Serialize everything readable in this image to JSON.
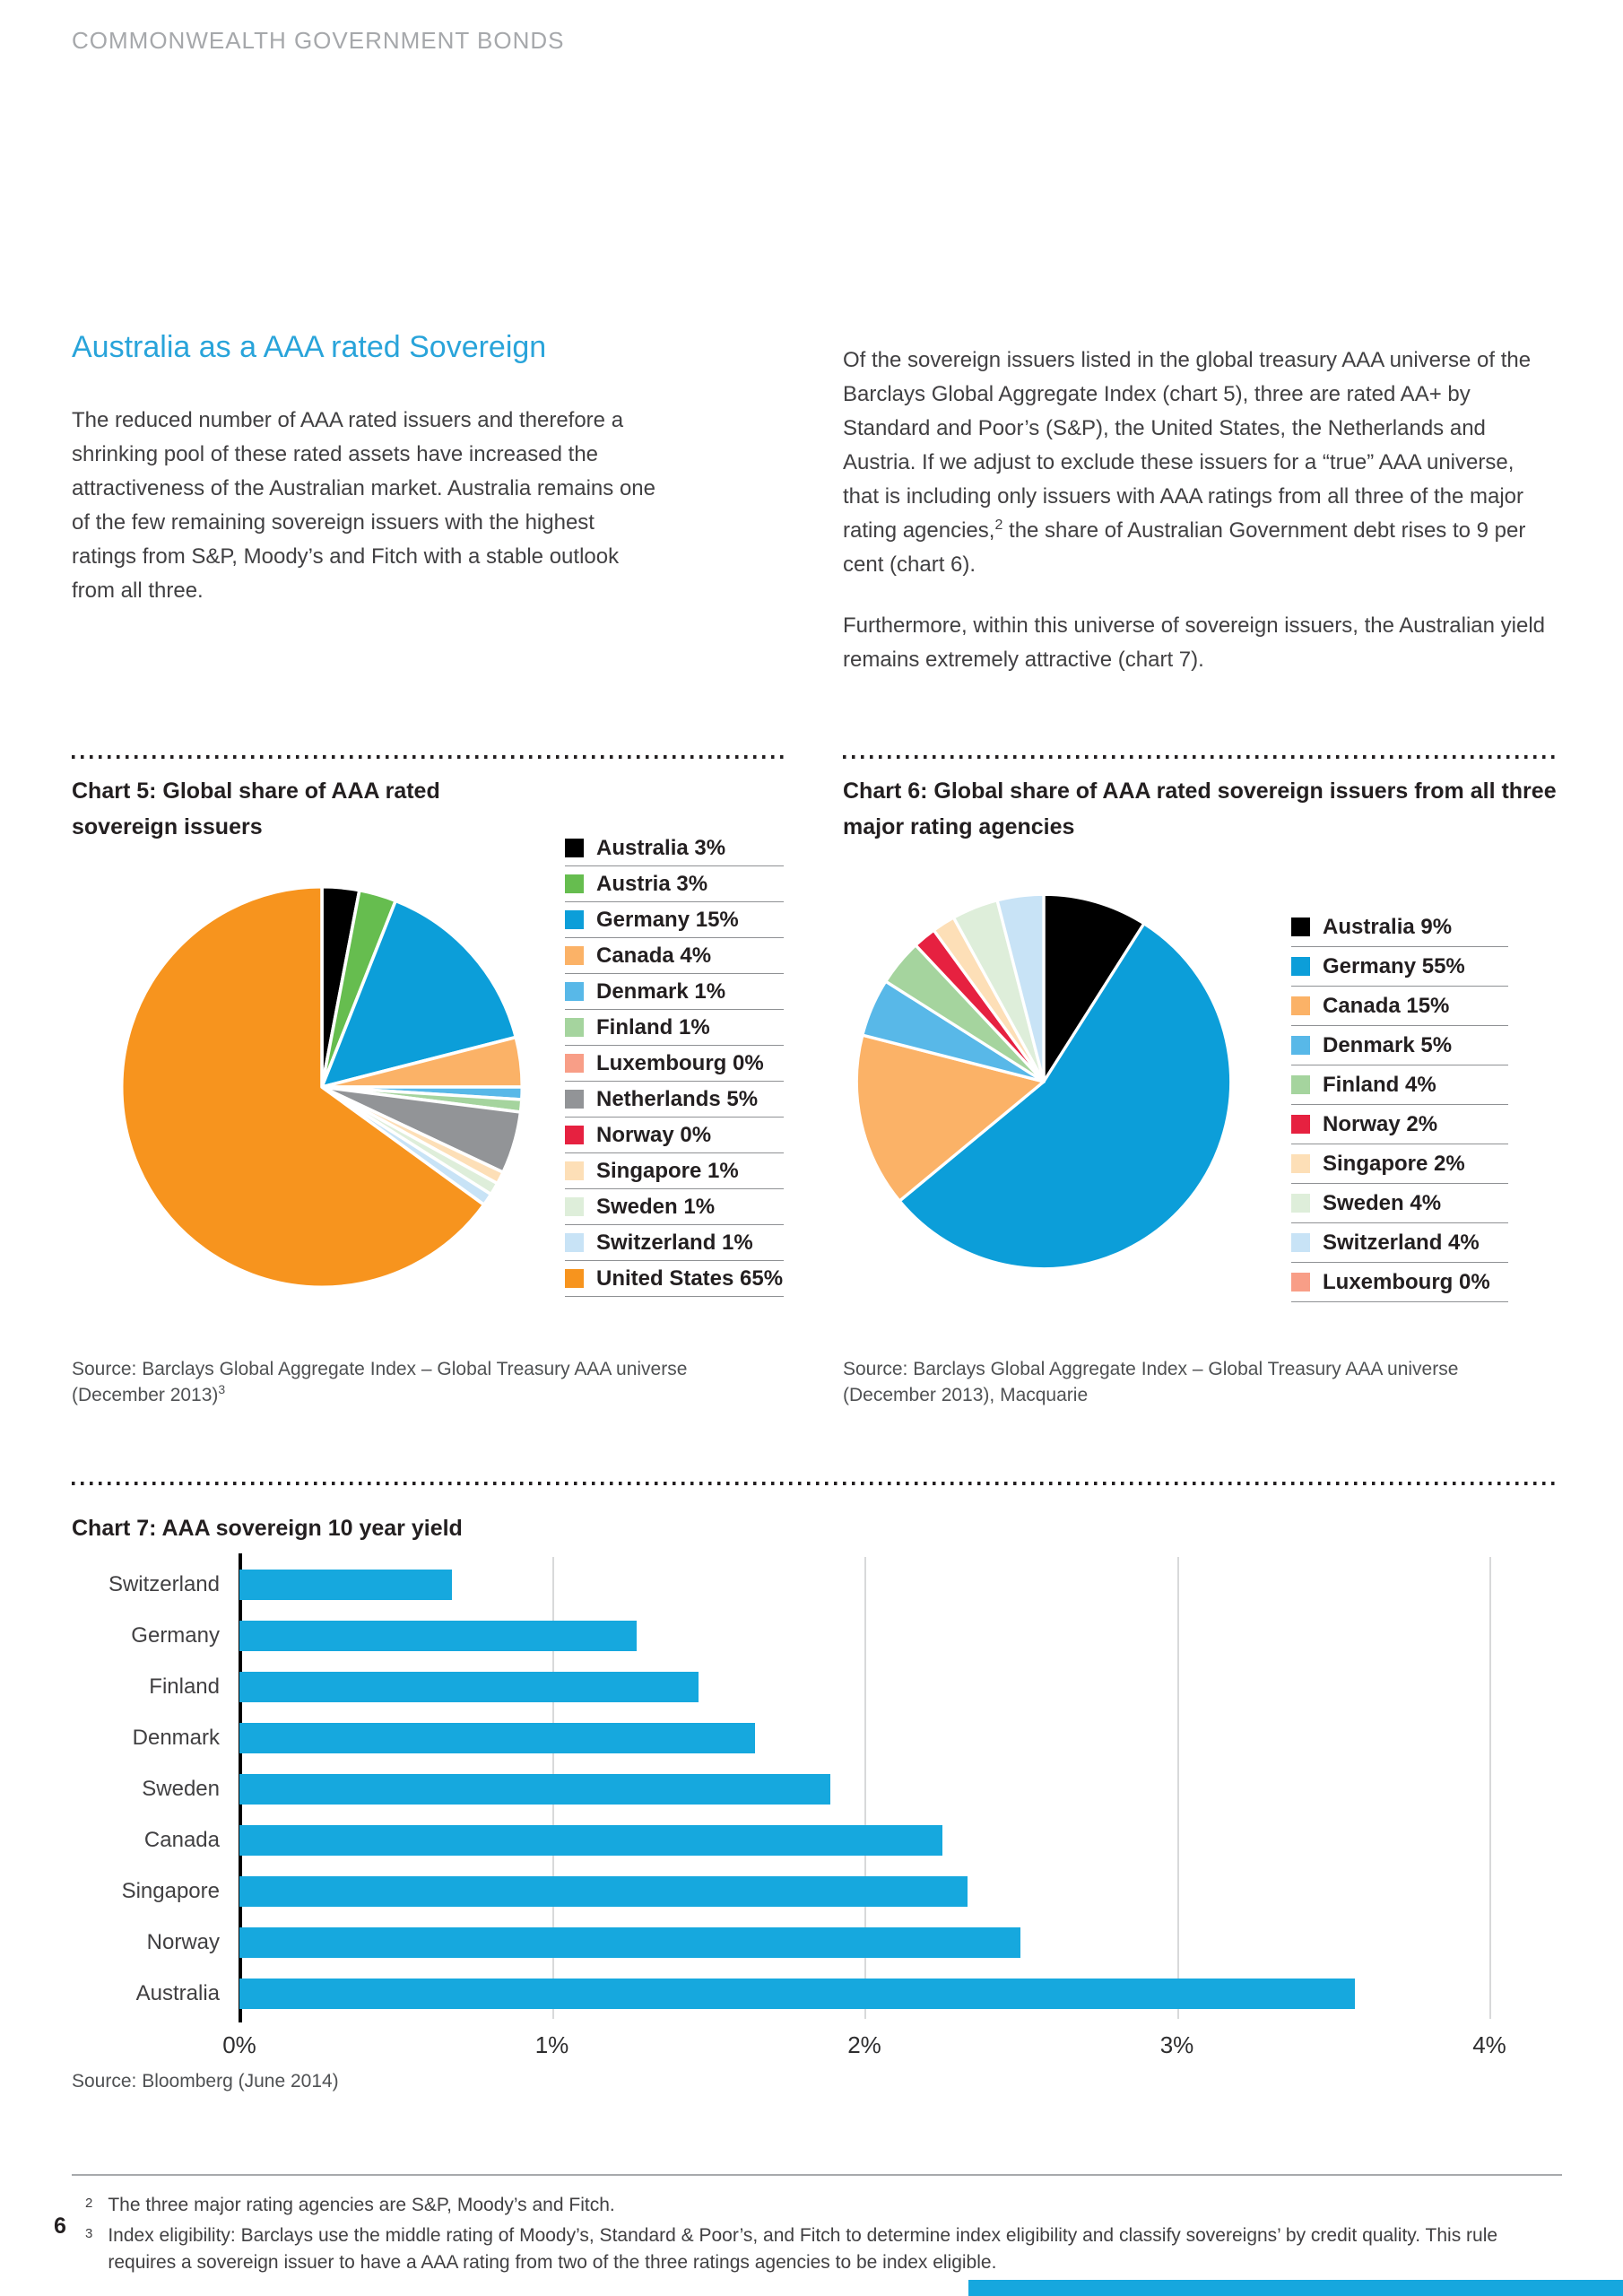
{
  "page": {
    "header_title": "COMMONWEALTH GOVERNMENT BONDS",
    "page_number": "6"
  },
  "article": {
    "title": "Australia as a AAA rated Sovereign",
    "left_paragraph": "The reduced number of AAA rated issuers and therefore a shrinking pool of these rated assets have increased the attractiveness of the Australian market. Australia remains one of the few remaining sovereign issuers with the highest ratings from S&P, Moody’s and Fitch with a stable outlook from all three.",
    "right_paragraph_1": {
      "text_before_sup": "Of the sovereign issuers listed in the global treasury AAA universe of the Barclays Global Aggregate Index (chart 5), three are rated AA+ by Standard and Poor’s (S&P), the United States, the Netherlands and Austria. If we adjust to exclude these issuers for a “true” AAA universe, that is including only issuers with AAA ratings from all three of the major rating agencies,",
      "sup": "2",
      "text_after_sup": " the share of Australian Government debt rises to 9 per cent (chart 6)."
    },
    "right_paragraph_2": "Furthermore, within this universe of sovereign issuers, the Australian yield remains extremely attractive (chart 7)."
  },
  "chart_data": [
    {
      "id": "chart5",
      "type": "pie",
      "title": "Chart 5: Global share of AAA rated sovereign issuers",
      "legend_position": "right",
      "slices": [
        {
          "label": "Australia",
          "value": 3,
          "color": "#000000"
        },
        {
          "label": "Austria",
          "value": 3,
          "color": "#66bd4f"
        },
        {
          "label": "Germany",
          "value": 15,
          "color": "#0c9ed9"
        },
        {
          "label": "Canada",
          "value": 4,
          "color": "#fbb267"
        },
        {
          "label": "Denmark",
          "value": 1,
          "color": "#58b8e8"
        },
        {
          "label": "Finland",
          "value": 1,
          "color": "#a5d49e"
        },
        {
          "label": "Luxembourg",
          "value": 0,
          "color": "#f89e87"
        },
        {
          "label": "Netherlands",
          "value": 5,
          "color": "#929497"
        },
        {
          "label": "Norway",
          "value": 0,
          "color": "#e62140"
        },
        {
          "label": "Singapore",
          "value": 1,
          "color": "#fddfb7"
        },
        {
          "label": "Sweden",
          "value": 1,
          "color": "#deeeda"
        },
        {
          "label": "Switzerland",
          "value": 1,
          "color": "#c8e3f6"
        },
        {
          "label": "United States",
          "value": 65,
          "color": "#f7941e"
        }
      ],
      "source_line1": "Source: Barclays Global Aggregate Index – Global Treasury AAA universe",
      "source_line2": "(December 2013)",
      "source_sup": "3"
    },
    {
      "id": "chart6",
      "type": "pie",
      "title": "Chart 6: Global share of AAA rated sovereign issuers from all three major rating agencies",
      "legend_position": "right",
      "slices": [
        {
          "label": "Australia",
          "value": 9,
          "color": "#000000"
        },
        {
          "label": "Germany",
          "value": 55,
          "color": "#0c9ed9"
        },
        {
          "label": "Canada",
          "value": 15,
          "color": "#fbb267"
        },
        {
          "label": "Denmark",
          "value": 5,
          "color": "#58b8e8"
        },
        {
          "label": "Finland",
          "value": 4,
          "color": "#a5d49e"
        },
        {
          "label": "Norway",
          "value": 2,
          "color": "#e62140"
        },
        {
          "label": "Singapore",
          "value": 2,
          "color": "#fddfb7"
        },
        {
          "label": "Sweden",
          "value": 4,
          "color": "#deeeda"
        },
        {
          "label": "Switzerland",
          "value": 4,
          "color": "#c8e3f6"
        },
        {
          "label": "Luxembourg",
          "value": 0,
          "color": "#f89e87"
        }
      ],
      "source_line1": "Source: Barclays Global Aggregate Index – Global Treasury AAA universe",
      "source_line2": "(December 2013), Macquarie",
      "source_sup": ""
    },
    {
      "id": "chart7",
      "type": "bar",
      "title": "Chart 7: AAA sovereign 10 year yield",
      "categories": [
        "Switzerland",
        "Germany",
        "Finland",
        "Denmark",
        "Sweden",
        "Canada",
        "Singapore",
        "Norway",
        "Australia"
      ],
      "values": [
        0.68,
        1.27,
        1.47,
        1.65,
        1.89,
        2.25,
        2.33,
        2.5,
        3.57
      ],
      "x_ticks": [
        "0%",
        "1%",
        "2%",
        "3%",
        "4%"
      ],
      "xlim": [
        0,
        4
      ],
      "bar_color": "#16a8de",
      "grid": true,
      "source": "Source: Bloomberg (June 2014)"
    }
  ],
  "footnotes": {
    "items": [
      {
        "sup": "2",
        "text": "The three major rating agencies are S&P, Moody’s and Fitch."
      },
      {
        "sup": "3",
        "text": "Index eligibility: Barclays use the middle rating of Moody’s, Standard & Poor’s, and Fitch to determine index eligibility and classify sovereigns’ by credit quality. This rule requires a sovereign issuer to have a AAA rating from two of the three ratings agencies to be index eligible."
      }
    ]
  },
  "colors": {
    "accent_blue": "#29a4da",
    "bar_blue": "#16a8de",
    "bottom_bar": "#16a7de"
  }
}
